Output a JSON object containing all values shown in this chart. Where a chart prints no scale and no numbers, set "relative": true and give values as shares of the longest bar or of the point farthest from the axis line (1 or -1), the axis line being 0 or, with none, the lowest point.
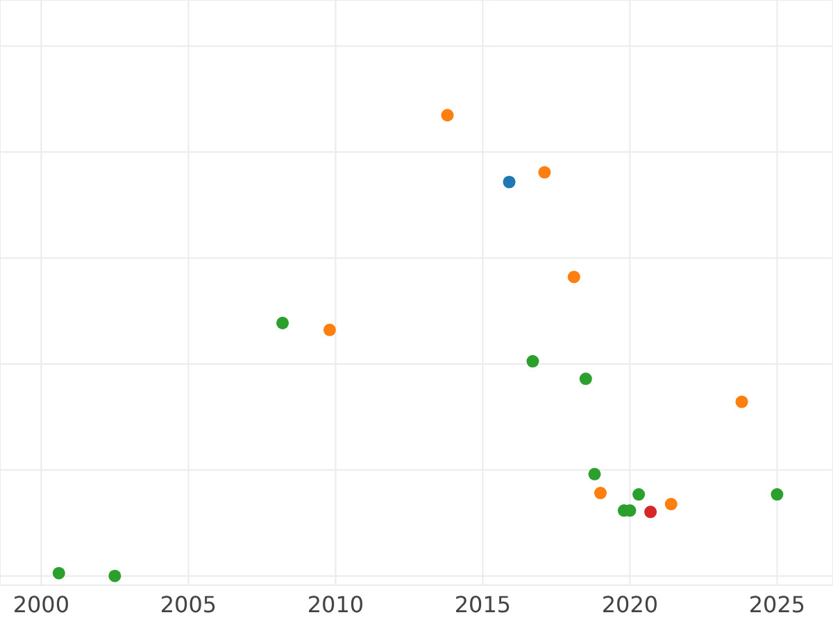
{
  "chart_data": {
    "type": "scatter",
    "relative": true,
    "tick_labels": "x",
    "grid": true,
    "marker": "circle",
    "xlim": [
      1998.6,
      2026.9
    ],
    "xticks": [
      2000,
      2005,
      2010,
      2015,
      2020,
      2025
    ],
    "series": [
      {
        "color": "#2ca02c",
        "x": [
          2000.6,
          2002.5,
          2008.2,
          2016.7,
          2018.5,
          2018.8,
          2019.8,
          2020.0,
          2020.3,
          2025.0
        ],
        "values": [
          0.006,
          0,
          0.549,
          0.466,
          0.428,
          0.221,
          0.142,
          0.142,
          0.177,
          0.177
        ]
      },
      {
        "color": "#ff7f0e",
        "x": [
          2009.8,
          2013.8,
          2017.1,
          2018.1,
          2019.0,
          2021.4,
          2023.8
        ],
        "values": [
          0.534,
          1,
          0.876,
          0.649,
          0.18,
          0.156,
          0.378
        ]
      },
      {
        "color": "#1f77b4",
        "x": [
          2015.9
        ],
        "values": [
          0.855
        ]
      },
      {
        "color": "#d62728",
        "x": [
          2020.7
        ],
        "values": [
          0.139
        ]
      }
    ]
  }
}
